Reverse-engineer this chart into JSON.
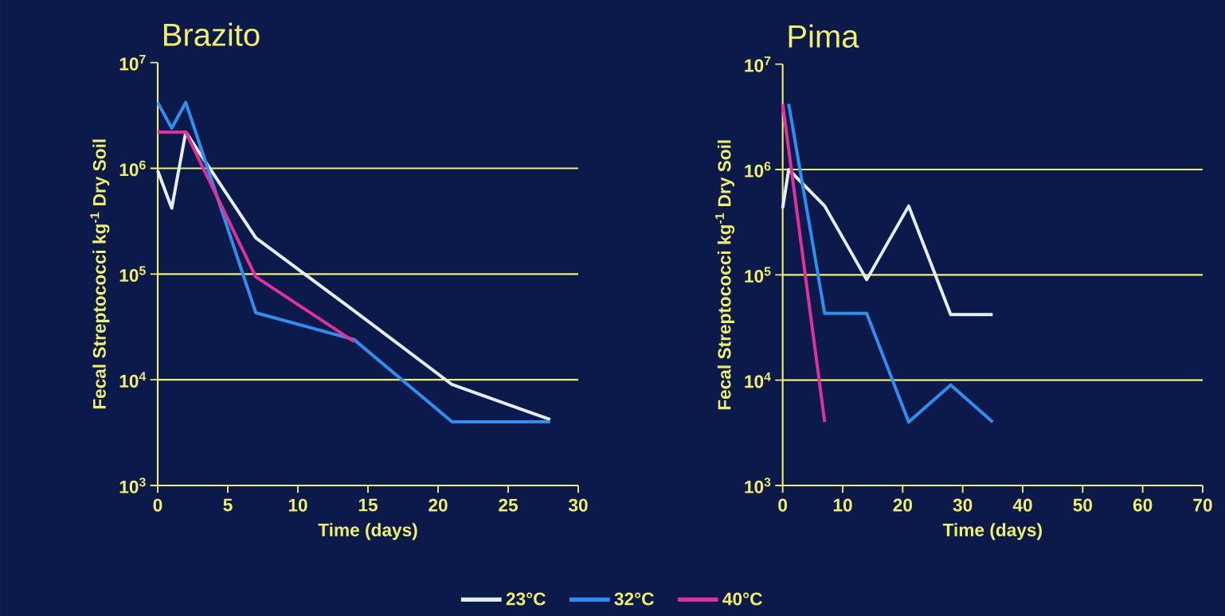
{
  "chart_data": [
    {
      "type": "line",
      "title": "Brazito",
      "xlabel": "Time (days)",
      "ylabel": "Fecal Streptococci kg$^{-1}$ Dry Soil",
      "log": "y",
      "xlim": [
        0,
        30
      ],
      "xticks": [
        0,
        5,
        10,
        15,
        20,
        25,
        30
      ],
      "ylim": [
        1000,
        10000000
      ],
      "yticks": [
        {
          "value": 1000,
          "label": "10$^{3}$"
        },
        {
          "value": 10000,
          "label": "10$^{4}$"
        },
        {
          "value": 100000,
          "label": "10$^{5}$"
        },
        {
          "value": 1000000,
          "label": "10$^{6}$"
        },
        {
          "value": 10000000,
          "label": "10$^{7}$"
        }
      ],
      "ref_lines": [
        {
          "axis": "y",
          "value": 10000,
          "color": "#f2ef6a"
        },
        {
          "axis": "y",
          "value": 100000,
          "color": "#f2ef6a"
        },
        {
          "axis": "y",
          "value": 1000000,
          "color": "#f2ef6a"
        }
      ],
      "legend": "bottom",
      "marker": "none",
      "line_style": "solid",
      "series": [
        {
          "name": "23°C",
          "color": "#e6eef5",
          "x": [
            0,
            1,
            2,
            7,
            14,
            21,
            28
          ],
          "values": [
            950000,
            420000,
            2200000,
            220000,
            45000,
            9000,
            4200
          ]
        },
        {
          "name": "32°C",
          "color": "#2e8ff0",
          "x": [
            0,
            1,
            2,
            7,
            14,
            21,
            28
          ],
          "values": [
            4200000,
            2400000,
            4200000,
            43000,
            24000,
            4000,
            4000
          ]
        },
        {
          "name": "40°C",
          "color": "#e0309a",
          "x": [
            0,
            2,
            7,
            14
          ],
          "values": [
            2200000,
            2200000,
            94000,
            23000
          ]
        }
      ]
    },
    {
      "type": "line",
      "title": "Pima",
      "xlabel": "Time (days)",
      "ylabel": "Fecal Streptococci kg$^{-1}$ Dry Soil",
      "log": "y",
      "xlim": [
        0,
        70
      ],
      "xticks": [
        0,
        10,
        20,
        30,
        40,
        50,
        60,
        70
      ],
      "ylim": [
        1000,
        10000000
      ],
      "yticks": [
        {
          "value": 1000,
          "label": "10$^{3}$"
        },
        {
          "value": 10000,
          "label": "10$^{4}$"
        },
        {
          "value": 100000,
          "label": "10$^{5}$"
        },
        {
          "value": 1000000,
          "label": "10$^{6}$"
        },
        {
          "value": 10000000,
          "label": "10$^{7}$"
        }
      ],
      "ref_lines": [
        {
          "axis": "y",
          "value": 10000,
          "color": "#f2ef6a"
        },
        {
          "axis": "y",
          "value": 100000,
          "color": "#f2ef6a"
        },
        {
          "axis": "y",
          "value": 1000000,
          "color": "#f2ef6a"
        }
      ],
      "marker": "none",
      "line_style": "solid",
      "series": [
        {
          "color": "#e6eef5",
          "x": [
            0,
            1,
            7,
            14,
            21,
            28,
            35
          ],
          "values": [
            430000,
            1000000,
            450000,
            90000,
            450000,
            42000,
            42000
          ]
        },
        {
          "color": "#2e8ff0",
          "x": [
            1,
            7,
            14,
            21,
            28,
            35
          ],
          "values": [
            4200000,
            43000,
            43000,
            4000,
            9000,
            4000
          ]
        },
        {
          "color": "#e0309a",
          "x": [
            0,
            7
          ],
          "values": [
            4200000,
            4000
          ]
        }
      ]
    }
  ]
}
